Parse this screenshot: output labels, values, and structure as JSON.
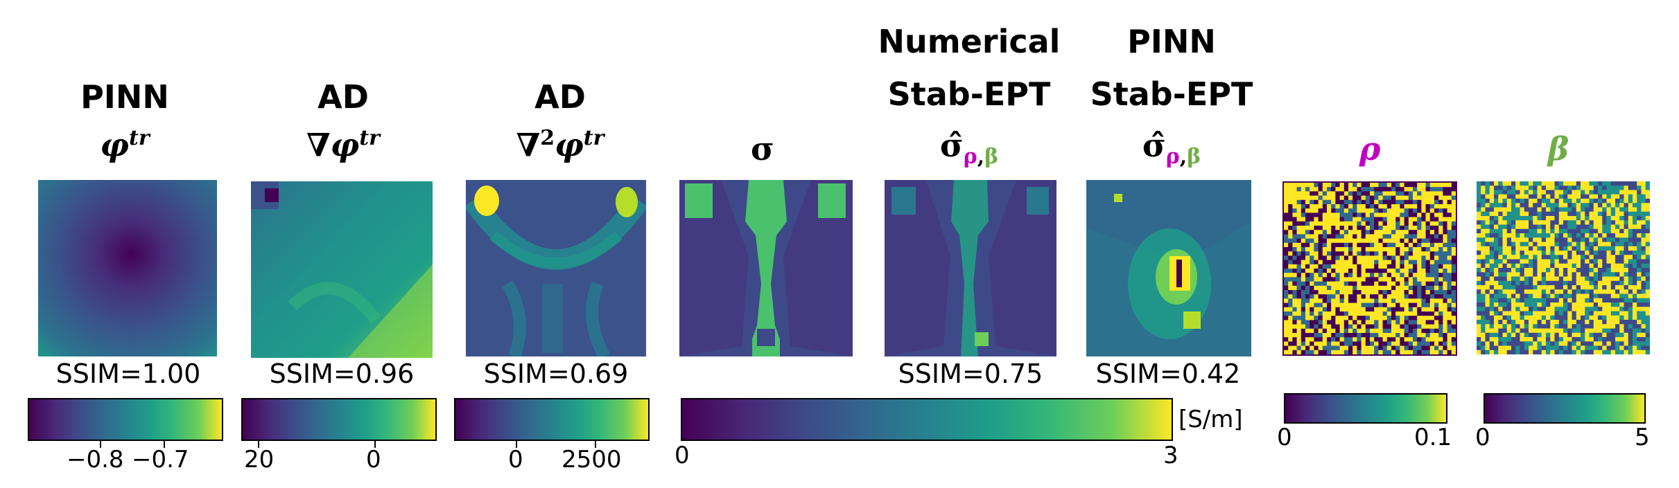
{
  "panels": [
    {
      "title_line1": "PINN",
      "symbol": "φ",
      "sup": "tr",
      "ssim": "SSIM=1.00"
    },
    {
      "title_line1": "AD",
      "op": "∇",
      "symbol": "φ",
      "sup": "tr",
      "ssim": "SSIM=0.96"
    },
    {
      "title_line1": "AD",
      "op": "∇",
      "op_sup": "2",
      "symbol": "φ",
      "sup": "tr",
      "ssim": "SSIM=0.69"
    },
    {
      "symbol": "σ"
    },
    {
      "title_line1": "Numerical",
      "title_line2": "Stab-EPT",
      "symbol": "σ̂",
      "sub_rho": "ρ",
      "sub_sep": ",",
      "sub_beta": "β",
      "ssim": "SSIM=0.75"
    },
    {
      "title_line1": "PINN",
      "title_line2": "Stab-EPT",
      "symbol": "σ̂",
      "sub_rho": "ρ",
      "sub_sep": ",",
      "sub_beta": "β",
      "ssim": "SSIM=0.42"
    },
    {
      "symbol": "ρ"
    },
    {
      "symbol": "β"
    }
  ],
  "colorbars": [
    {
      "ticks": [
        "−0.8",
        "−0.7"
      ]
    },
    {
      "ticks": [
        "20",
        "0"
      ]
    },
    {
      "ticks": [
        "0",
        "2500"
      ]
    },
    {
      "ticks": [
        "0",
        "3"
      ],
      "unit": "[S/m]"
    },
    {
      "ticks": [
        "0",
        "0.1"
      ]
    },
    {
      "ticks": [
        "0",
        "5"
      ]
    }
  ],
  "colors": {
    "rho": "#c000c0",
    "beta": "#70ad47",
    "viridis_low": "#440154",
    "viridis_mid": "#21918c",
    "viridis_high": "#fde725"
  }
}
